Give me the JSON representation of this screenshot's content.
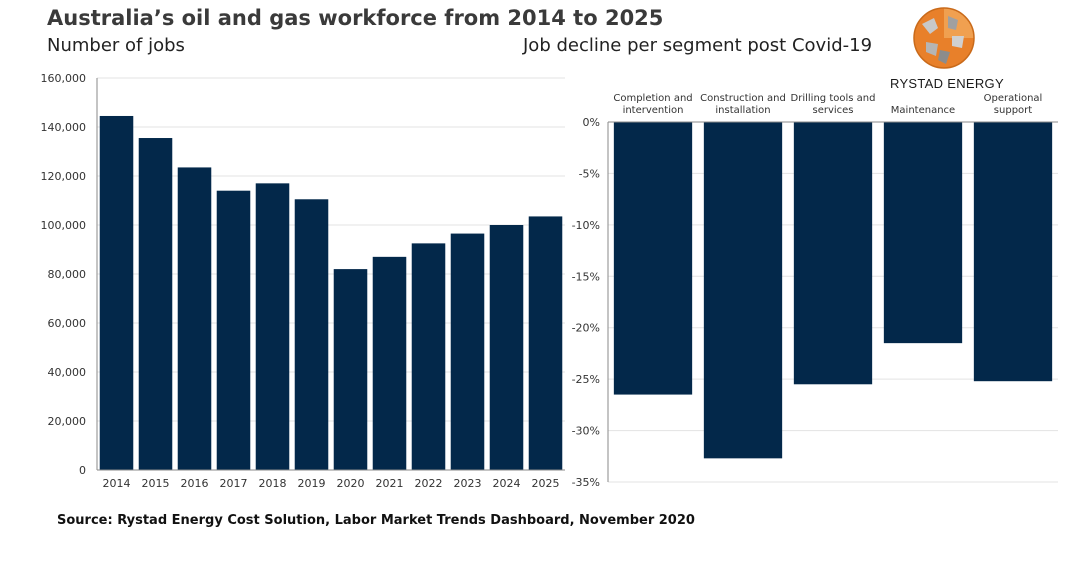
{
  "title": "Australia’s oil and gas workforce from 2014 to 2025",
  "left_subtitle": "Number of jobs",
  "right_subtitle": "Job decline per segment post Covid-19",
  "brand": "RYSTAD ENERGY",
  "source": "Source: Rystad Energy Cost Solution, Labor Market Trends Dashboard, November 2020",
  "colors": {
    "bar": "#03284a",
    "grid": "#e3e3e3",
    "axis": "#8a8a8a",
    "logo_orange": "#e8802a",
    "logo_grey": "#8c8c8c"
  },
  "logo_icon": "globe-icon",
  "chart_data": [
    {
      "type": "bar",
      "categories": [
        "2014",
        "2015",
        "2016",
        "2017",
        "2018",
        "2019",
        "2020",
        "2021",
        "2022",
        "2023",
        "2024",
        "2025"
      ],
      "values": [
        144500,
        135500,
        123500,
        114000,
        117000,
        110500,
        82000,
        87000,
        92500,
        96500,
        100000,
        103500
      ],
      "ylim": [
        0,
        160000
      ],
      "yticks": [
        0,
        20000,
        40000,
        60000,
        80000,
        100000,
        120000,
        140000,
        160000
      ],
      "ytick_labels": [
        "0",
        "20,000",
        "40,000",
        "60,000",
        "80,000",
        "100,000",
        "120,000",
        "140,000",
        "160,000"
      ],
      "grid": true
    },
    {
      "type": "bar",
      "categories": [
        [
          "Completion and",
          "intervention"
        ],
        [
          "Construction and",
          "installation"
        ],
        [
          "Drilling tools and",
          "services"
        ],
        [
          "Maintenance"
        ],
        [
          "Operational",
          "support"
        ]
      ],
      "values": [
        -26.5,
        -32.7,
        -25.5,
        -21.5,
        -25.2
      ],
      "ylim": [
        -35,
        0
      ],
      "yticks": [
        0,
        -5,
        -10,
        -15,
        -20,
        -25,
        -30,
        -35
      ],
      "ytick_labels": [
        "0%",
        "-5%",
        "-10%",
        "-15%",
        "-20%",
        "-25%",
        "-30%",
        "-35%"
      ],
      "category_axis_position": "top",
      "grid": true
    }
  ]
}
